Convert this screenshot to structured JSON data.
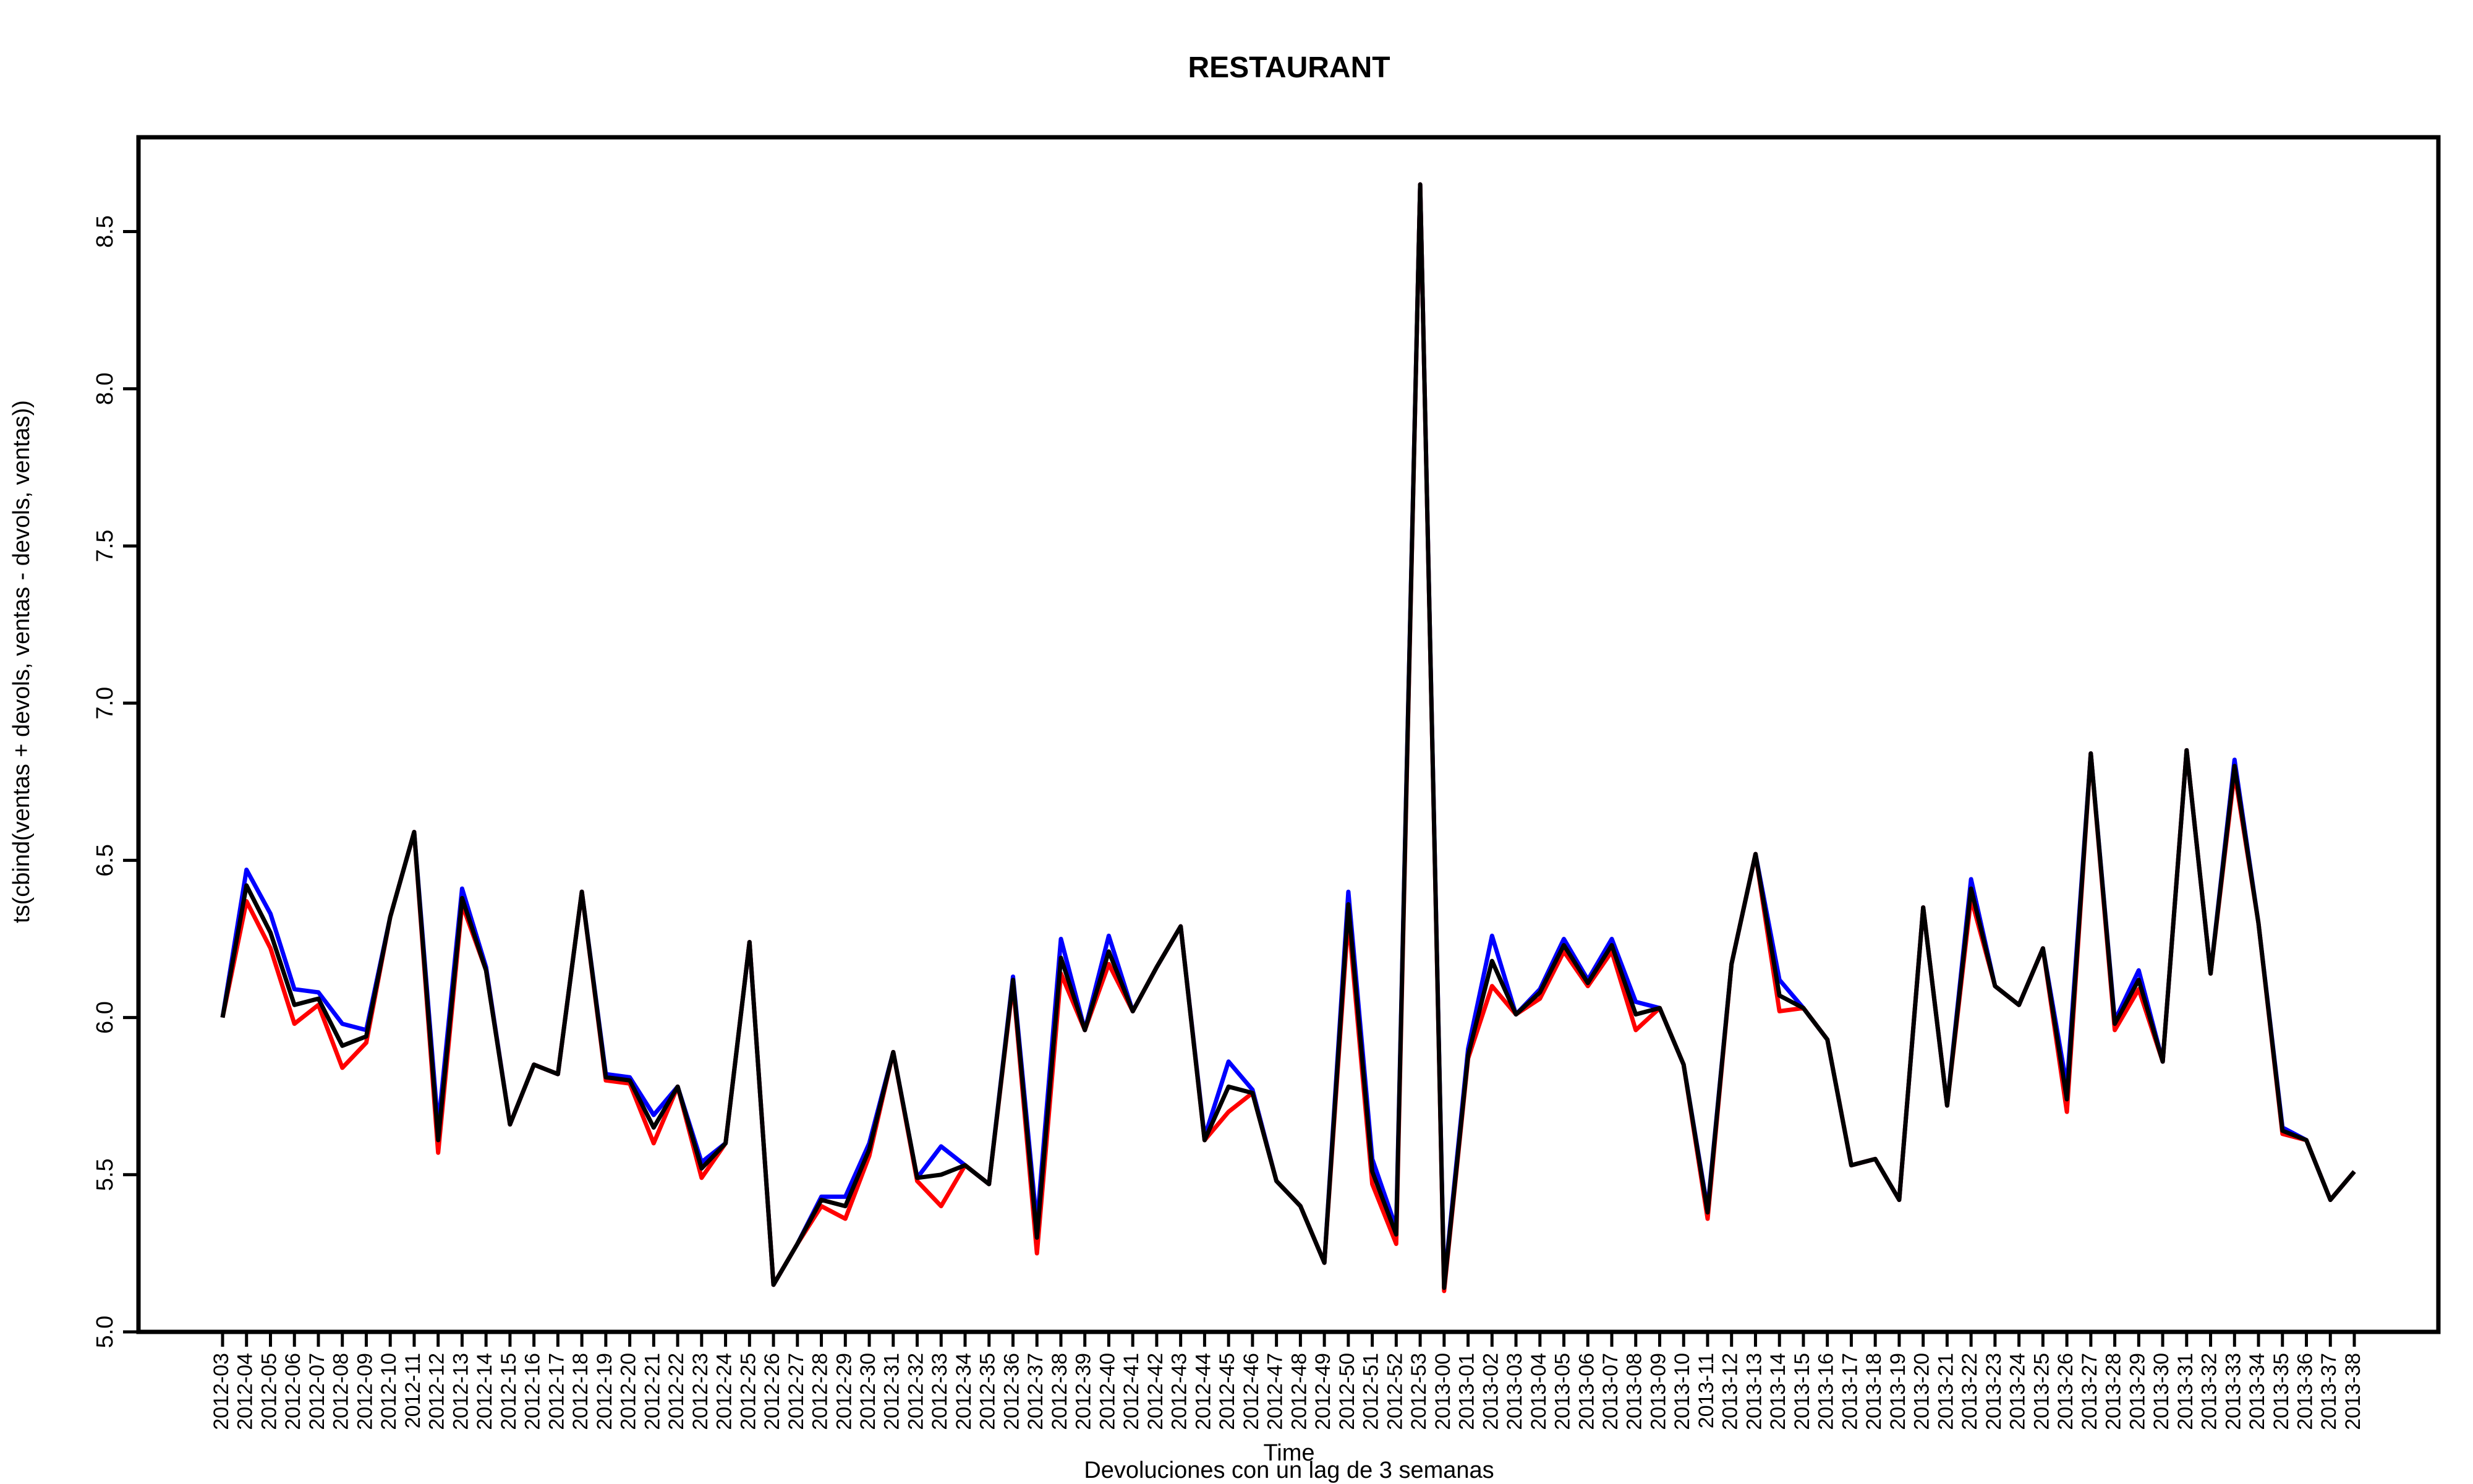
{
  "chart_data": {
    "type": "line",
    "title": "RESTAURANT",
    "xlabel": "Time",
    "ylabel": "ts(cbind(ventas + devols, ventas - devols, ventas))",
    "subtitle": "Devoluciones con un lag de 3 semanas",
    "ylim": [
      5.0,
      8.8
    ],
    "yticks": [
      5.0,
      5.5,
      6.0,
      6.5,
      7.0,
      7.5,
      8.0,
      8.5
    ],
    "grid": false,
    "categories": [
      "2012-03",
      "2012-04",
      "2012-05",
      "2012-06",
      "2012-07",
      "2012-08",
      "2012-09",
      "2012-10",
      "2012-11",
      "2012-12",
      "2012-13",
      "2012-14",
      "2012-15",
      "2012-16",
      "2012-17",
      "2012-18",
      "2012-19",
      "2012-20",
      "2012-21",
      "2012-22",
      "2012-23",
      "2012-24",
      "2012-25",
      "2012-26",
      "2012-27",
      "2012-28",
      "2012-29",
      "2012-30",
      "2012-31",
      "2012-32",
      "2012-33",
      "2012-34",
      "2012-35",
      "2012-36",
      "2012-37",
      "2012-38",
      "2012-39",
      "2012-40",
      "2012-41",
      "2012-42",
      "2012-43",
      "2012-44",
      "2012-45",
      "2012-46",
      "2012-47",
      "2012-48",
      "2012-49",
      "2012-50",
      "2012-51",
      "2012-52",
      "2012-53",
      "2013-00",
      "2013-01",
      "2013-02",
      "2013-03",
      "2013-04",
      "2013-05",
      "2013-06",
      "2013-07",
      "2013-08",
      "2013-09",
      "2013-10",
      "2013-11",
      "2013-12",
      "2013-13",
      "2013-14",
      "2013-15",
      "2013-16",
      "2013-17",
      "2013-18",
      "2013-19",
      "2013-20",
      "2013-21",
      "2013-22",
      "2013-23",
      "2013-24",
      "2013-25",
      "2013-26",
      "2013-27",
      "2013-28",
      "2013-29",
      "2013-30",
      "2013-31",
      "2013-32",
      "2013-33",
      "2013-34",
      "2013-35",
      "2013-36",
      "2013-37",
      "2013-38"
    ],
    "series": [
      {
        "color": "#0000ff",
        "values": [
          6.0,
          6.47,
          6.33,
          6.09,
          6.08,
          5.98,
          5.96,
          6.32,
          6.59,
          5.65,
          6.41,
          6.16,
          5.66,
          5.85,
          5.82,
          6.4,
          5.82,
          5.81,
          5.69,
          5.78,
          5.54,
          5.6,
          6.24,
          5.15,
          5.28,
          5.43,
          5.43,
          5.6,
          5.89,
          5.49,
          5.59,
          5.53,
          5.47,
          6.13,
          5.34,
          6.25,
          5.96,
          6.26,
          6.02,
          6.16,
          6.29,
          5.62,
          5.86,
          5.77,
          5.48,
          5.4,
          5.22,
          6.4,
          5.55,
          5.33,
          8.65,
          5.15,
          5.9,
          6.26,
          6.01,
          6.09,
          6.25,
          6.12,
          6.25,
          6.05,
          6.03,
          5.85,
          5.39,
          6.17,
          6.52,
          6.12,
          6.03,
          5.93,
          5.53,
          5.55,
          5.42,
          6.35,
          5.72,
          6.44,
          6.1,
          6.04,
          6.22,
          5.78,
          6.84,
          5.99,
          6.15,
          5.86,
          6.85,
          6.14,
          6.82,
          6.3,
          5.65,
          5.61,
          5.42,
          5.51
        ]
      },
      {
        "color": "#ff0000",
        "values": [
          6.0,
          6.37,
          6.22,
          5.98,
          6.04,
          5.84,
          5.92,
          6.32,
          6.59,
          5.57,
          6.36,
          6.15,
          5.66,
          5.85,
          5.82,
          6.4,
          5.8,
          5.79,
          5.6,
          5.78,
          5.49,
          5.6,
          6.24,
          5.15,
          5.28,
          5.4,
          5.36,
          5.56,
          5.89,
          5.48,
          5.4,
          5.53,
          5.47,
          6.11,
          5.25,
          6.14,
          5.96,
          6.17,
          6.02,
          6.16,
          6.29,
          5.61,
          5.7,
          5.76,
          5.48,
          5.4,
          5.22,
          6.32,
          5.47,
          5.28,
          8.65,
          5.13,
          5.87,
          6.1,
          6.01,
          6.06,
          6.21,
          6.1,
          6.21,
          5.96,
          6.03,
          5.85,
          5.36,
          6.17,
          6.52,
          6.02,
          6.03,
          5.93,
          5.53,
          5.55,
          5.42,
          6.35,
          5.72,
          6.38,
          6.1,
          6.04,
          6.22,
          5.7,
          6.84,
          5.96,
          6.09,
          5.86,
          6.85,
          6.14,
          6.78,
          6.3,
          5.63,
          5.61,
          5.42,
          5.51
        ]
      },
      {
        "color": "#000000",
        "values": [
          6.0,
          6.42,
          6.27,
          6.04,
          6.06,
          5.91,
          5.94,
          6.32,
          6.59,
          5.61,
          6.38,
          6.15,
          5.66,
          5.85,
          5.82,
          6.4,
          5.81,
          5.8,
          5.65,
          5.78,
          5.52,
          5.6,
          6.24,
          5.15,
          5.28,
          5.42,
          5.4,
          5.58,
          5.89,
          5.49,
          5.5,
          5.53,
          5.47,
          6.12,
          5.3,
          6.19,
          5.96,
          6.21,
          6.02,
          6.16,
          6.29,
          5.61,
          5.78,
          5.76,
          5.48,
          5.4,
          5.22,
          6.36,
          5.51,
          5.31,
          8.65,
          5.14,
          5.88,
          6.18,
          6.01,
          6.08,
          6.23,
          6.11,
          6.23,
          6.01,
          6.03,
          5.85,
          5.38,
          6.17,
          6.52,
          6.07,
          6.03,
          5.93,
          5.53,
          5.55,
          5.42,
          6.35,
          5.72,
          6.41,
          6.1,
          6.04,
          6.22,
          5.74,
          6.84,
          5.98,
          6.12,
          5.86,
          6.85,
          6.14,
          6.8,
          6.3,
          5.64,
          5.61,
          5.42,
          5.51
        ]
      }
    ]
  }
}
